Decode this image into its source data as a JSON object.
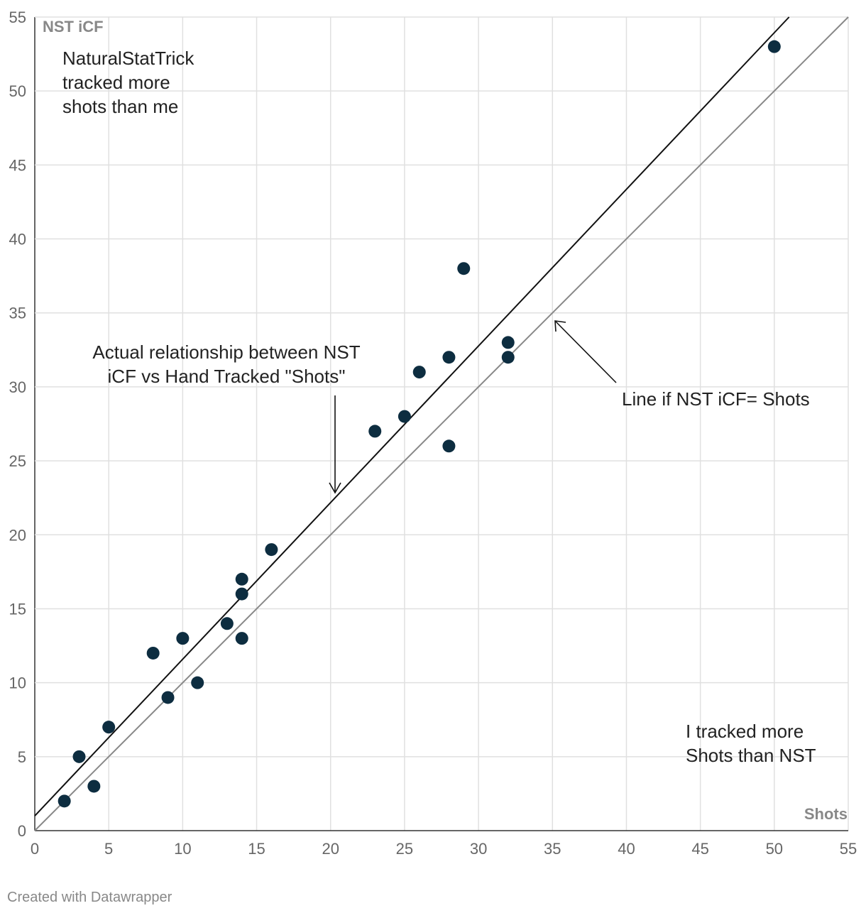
{
  "chart_data": {
    "type": "scatter",
    "x": [
      2,
      3,
      4,
      5,
      8,
      9,
      10,
      11,
      13,
      14,
      14,
      14,
      16,
      23,
      25,
      26,
      28,
      28,
      29,
      32,
      32,
      50
    ],
    "y": [
      2,
      5,
      3,
      7,
      12,
      9,
      13,
      10,
      14,
      16,
      17,
      13,
      19,
      27,
      28,
      31,
      32,
      26,
      38,
      33,
      32,
      53
    ],
    "xlabel": "Shots",
    "ylabel": "NST iCF",
    "xlim": [
      0,
      55
    ],
    "ylim": [
      0,
      55
    ],
    "xticks": [
      0,
      5,
      10,
      15,
      20,
      25,
      30,
      35,
      40,
      45,
      50,
      55
    ],
    "yticks": [
      0,
      5,
      10,
      15,
      20,
      25,
      30,
      35,
      40,
      45,
      50,
      55
    ],
    "grid": true,
    "point_color": "#0d2d40",
    "lines": [
      {
        "name": "Actual relationship",
        "x": [
          0,
          51
        ],
        "y": [
          1,
          55
        ],
        "color": "#111111"
      },
      {
        "name": "Line if NST iCF= Shots",
        "x": [
          0,
          55
        ],
        "y": [
          0,
          55
        ],
        "color": "#888888"
      }
    ],
    "annotations": [
      {
        "id": "nst-more",
        "lines": [
          "NaturalStatTrick",
          "tracked more",
          "shots than me"
        ]
      },
      {
        "id": "actual",
        "lines": [
          "Actual relationship between NST",
          "iCF vs Hand Tracked \"Shots\""
        ]
      },
      {
        "id": "equal",
        "lines": [
          "Line if NST iCF= Shots"
        ]
      },
      {
        "id": "me-more",
        "lines": [
          "I tracked more",
          "Shots than NST"
        ]
      }
    ]
  },
  "footer": {
    "credit": "Created with Datawrapper"
  }
}
